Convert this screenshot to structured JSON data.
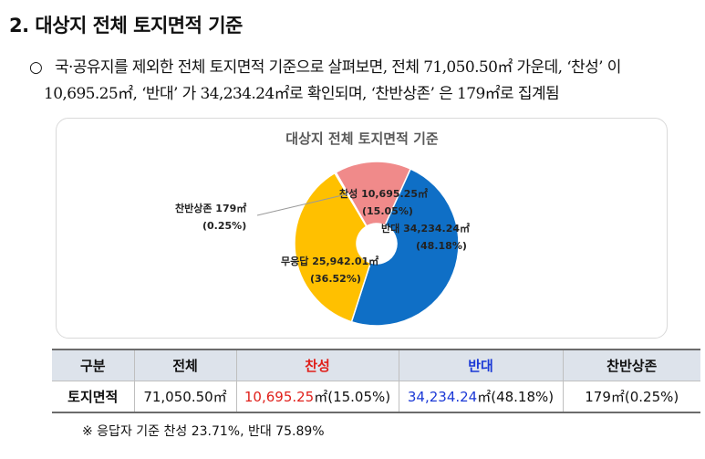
{
  "heading": "2. 대상지 전체 토지면적 기준",
  "paragraph": {
    "bullet": "○",
    "line1": "국·공유지를 제외한 전체 토지면적 기준으로 살펴보면, 전체 71,050.50㎡ 가운데, ‘찬성’ 이",
    "line2": "10,695.25㎡, ‘반대’ 가 34,234.24㎡로 확인되며, ‘찬반상존’ 은 179㎡로 집계됨"
  },
  "chart_data": {
    "type": "pie",
    "title": "대상지 전체 토지면적 기준",
    "slices": [
      {
        "name": "찬성",
        "value": 10695.25,
        "label": "찬성 10,695.25㎡",
        "pct": "(15.05%)",
        "color": "#f08a8a"
      },
      {
        "name": "반대",
        "value": 34234.24,
        "label": "반대 34,234.24㎡",
        "pct": "(48.18%)",
        "color": "#0f6fc6"
      },
      {
        "name": "무응답",
        "value": 25942.01,
        "label": "무응답 25,942.01㎡",
        "pct": "(36.52%)",
        "color": "#ffc000"
      },
      {
        "name": "찬반상존",
        "value": 179,
        "label": "찬반상존 179㎡",
        "pct": "(0.25%)",
        "color": "#9ec4e6"
      }
    ]
  },
  "table": {
    "headers": [
      "구분",
      "전체",
      "찬성",
      "반대",
      "찬반상존"
    ],
    "row": {
      "label": "토지면적",
      "total": "71,050.50㎡",
      "pro": "10,695.25",
      "pro_rest": "㎡(15.05%)",
      "con": "34,234.24",
      "con_rest": "㎡(48.18%)",
      "both": "179㎡(0.25%)"
    }
  },
  "note": "※ 응답자 기준 찬성 23.71%, 반대 75.89%",
  "colors": {
    "pro": "#e0201b",
    "con": "#1b39d6",
    "header_bg": "#dde3eb"
  }
}
